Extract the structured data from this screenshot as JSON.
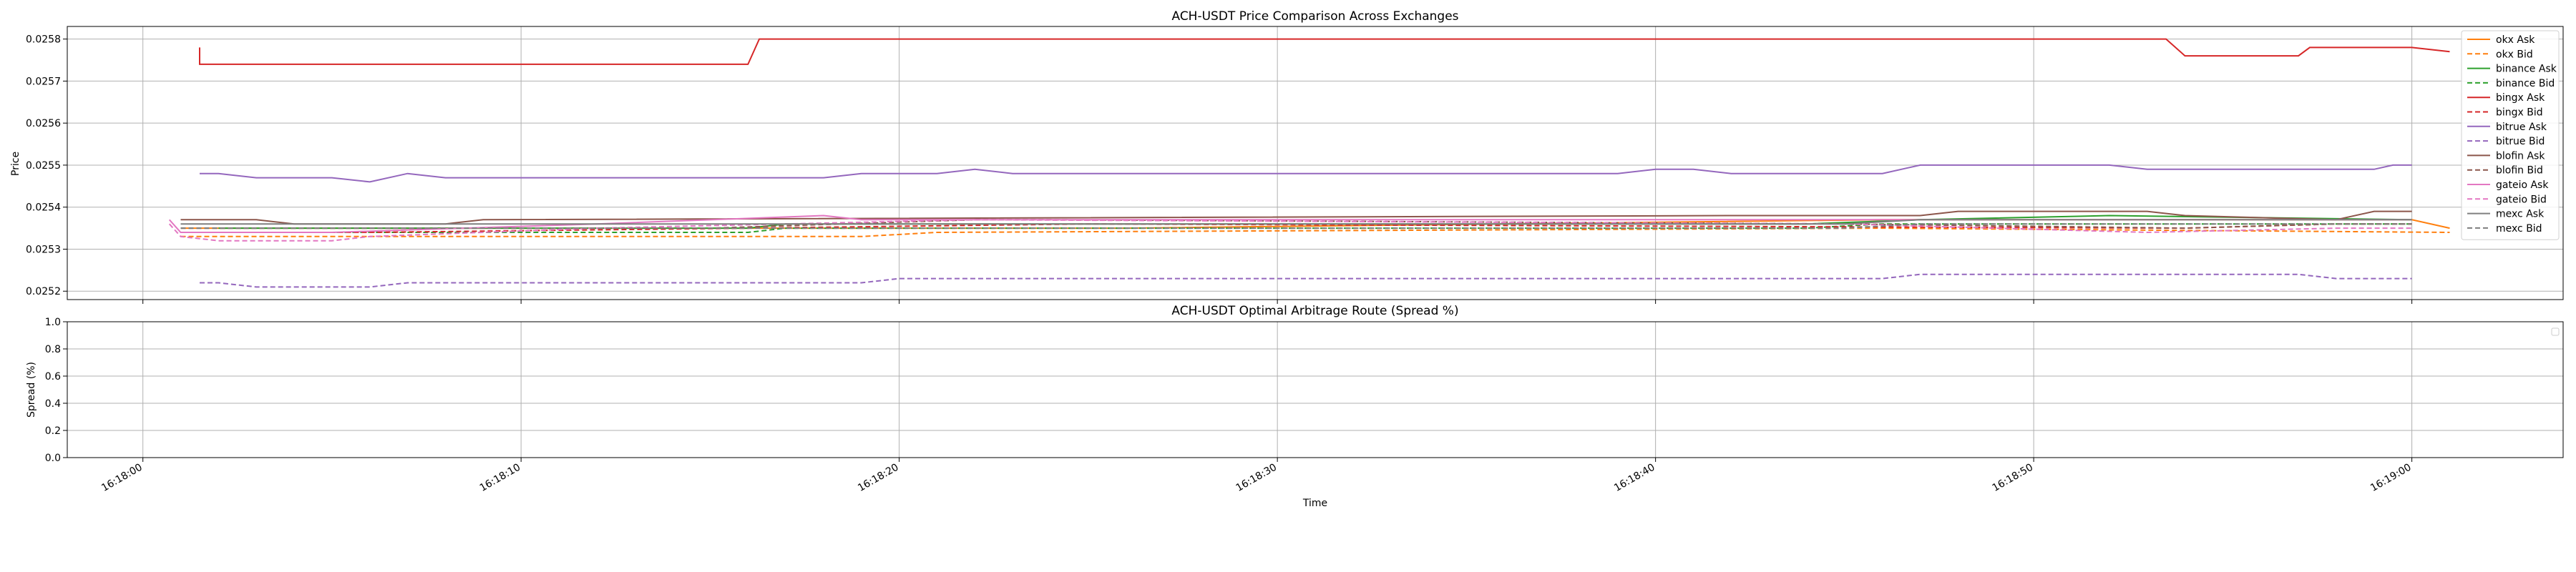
{
  "chart_data": [
    {
      "type": "line",
      "title": "ACH-USDT Price Comparison Across Exchanges",
      "xlabel": "",
      "ylabel": "Price",
      "xlim": [
        "16:17:58",
        "16:19:04"
      ],
      "ylim": [
        0.02518,
        0.02583
      ],
      "yticks": [
        "0.0252",
        "0.0253",
        "0.0254",
        "0.0255",
        "0.0256",
        "0.0257",
        "0.0258"
      ],
      "grid": true,
      "legend": "upper right",
      "series": [
        {
          "name": "okx Ask",
          "color": "#ff7f0e",
          "dash": false,
          "points": [
            [
              "16:18:01",
              0.02535
            ],
            [
              "16:18:06",
              0.02535
            ],
            [
              "16:18:26",
              0.02535
            ],
            [
              "16:18:46",
              0.02537
            ],
            [
              "16:19:00",
              0.02537
            ],
            [
              "16:19:01",
              0.02535
            ]
          ]
        },
        {
          "name": "okx Bid",
          "color": "#ff7f0e",
          "dash": true,
          "points": [
            [
              "16:18:01",
              0.02533
            ],
            [
              "16:18:06",
              0.02533
            ],
            [
              "16:18:19",
              0.02533
            ],
            [
              "16:18:21",
              0.02534
            ],
            [
              "16:18:46",
              0.02535
            ],
            [
              "16:19:01",
              0.02534
            ]
          ]
        },
        {
          "name": "binance Ask",
          "color": "#2ca02c",
          "dash": false,
          "points": [
            [
              "16:18:02",
              0.02535
            ],
            [
              "16:18:16",
              0.02535
            ],
            [
              "16:18:17",
              0.02536
            ],
            [
              "16:18:44",
              0.02536
            ],
            [
              "16:18:47",
              0.02537
            ],
            [
              "16:18:52",
              0.02538
            ],
            [
              "16:19:00",
              0.02537
            ]
          ]
        },
        {
          "name": "binance Bid",
          "color": "#2ca02c",
          "dash": true,
          "points": [
            [
              "16:18:02",
              0.02534
            ],
            [
              "16:18:16",
              0.02534
            ],
            [
              "16:18:17",
              0.02535
            ],
            [
              "16:18:44",
              0.02535
            ],
            [
              "16:18:46",
              0.02536
            ],
            [
              "16:19:00",
              0.02536
            ]
          ]
        },
        {
          "name": "bingx Ask",
          "color": "#d62728",
          "dash": false,
          "points": [
            [
              "16:18:01.5",
              0.02578
            ],
            [
              "16:18:01.5",
              0.02574
            ],
            [
              "16:18:16",
              0.02574
            ],
            [
              "16:18:16.3",
              0.0258
            ],
            [
              "16:18:53.5",
              0.0258
            ],
            [
              "16:18:54",
              0.02576
            ],
            [
              "16:18:57",
              0.02576
            ],
            [
              "16:18:57.3",
              0.02578
            ],
            [
              "16:19:00",
              0.02578
            ],
            [
              "16:19:01",
              0.02577
            ]
          ]
        },
        {
          "name": "bingx Bid",
          "color": "#d62728",
          "dash": true,
          "points": [
            [
              "16:18:01",
              0.02534
            ],
            [
              "16:18:06",
              0.02534
            ],
            [
              "16:18:16",
              0.02535
            ],
            [
              "16:18:25",
              0.02536
            ],
            [
              "16:18:54",
              0.02535
            ],
            [
              "16:18:58",
              0.02536
            ],
            [
              "16:19:00",
              0.02536
            ]
          ]
        },
        {
          "name": "bitrue Ask",
          "color": "#9467bd",
          "dash": false,
          "points": [
            [
              "16:18:01.5",
              0.02548
            ],
            [
              "16:18:02",
              0.02548
            ],
            [
              "16:18:03",
              0.02547
            ],
            [
              "16:18:05",
              0.02547
            ],
            [
              "16:18:06",
              0.02546
            ],
            [
              "16:18:07",
              0.02548
            ],
            [
              "16:18:08",
              0.02547
            ],
            [
              "16:18:18",
              0.02547
            ],
            [
              "16:18:19",
              0.02548
            ],
            [
              "16:18:21",
              0.02548
            ],
            [
              "16:18:22",
              0.02549
            ],
            [
              "16:18:23",
              0.02548
            ],
            [
              "16:18:39",
              0.02548
            ],
            [
              "16:18:40",
              0.02549
            ],
            [
              "16:18:41",
              0.02549
            ],
            [
              "16:18:42",
              0.02548
            ],
            [
              "16:18:46",
              0.02548
            ],
            [
              "16:18:47",
              0.0255
            ],
            [
              "16:18:52",
              0.0255
            ],
            [
              "16:18:53",
              0.02549
            ],
            [
              "16:18:59",
              0.02549
            ],
            [
              "16:18:59.5",
              0.0255
            ],
            [
              "16:19:00",
              0.0255
            ]
          ]
        },
        {
          "name": "bitrue Bid",
          "color": "#9467bd",
          "dash": true,
          "points": [
            [
              "16:18:01.5",
              0.02522
            ],
            [
              "16:18:02",
              0.02522
            ],
            [
              "16:18:03",
              0.02521
            ],
            [
              "16:18:06",
              0.02521
            ],
            [
              "16:18:07",
              0.02522
            ],
            [
              "16:18:19",
              0.02522
            ],
            [
              "16:18:20",
              0.02523
            ],
            [
              "16:18:46",
              0.02523
            ],
            [
              "16:18:47",
              0.02524
            ],
            [
              "16:18:57",
              0.02524
            ],
            [
              "16:18:58",
              0.02523
            ],
            [
              "16:19:00",
              0.02523
            ]
          ]
        },
        {
          "name": "blofin Ask",
          "color": "#8c564b",
          "dash": false,
          "points": [
            [
              "16:18:01",
              0.02537
            ],
            [
              "16:18:03",
              0.02537
            ],
            [
              "16:18:04",
              0.02536
            ],
            [
              "16:18:08",
              0.02536
            ],
            [
              "16:18:09",
              0.02537
            ],
            [
              "16:18:42",
              0.02538
            ],
            [
              "16:18:47",
              0.02538
            ],
            [
              "16:18:48",
              0.02539
            ],
            [
              "16:18:53",
              0.02539
            ],
            [
              "16:18:54",
              0.02538
            ],
            [
              "16:18:58",
              0.02537
            ],
            [
              "16:18:59",
              0.02539
            ],
            [
              "16:19:00",
              0.02539
            ]
          ]
        },
        {
          "name": "blofin Bid",
          "color": "#8c564b",
          "dash": true,
          "points": [
            [
              "16:18:01",
              0.02535
            ],
            [
              "16:18:15",
              0.02535
            ],
            [
              "16:18:22",
              0.02537
            ],
            [
              "16:18:24",
              0.02537
            ],
            [
              "16:18:45",
              0.02536
            ],
            [
              "16:18:54",
              0.02535
            ],
            [
              "16:18:58",
              0.02536
            ],
            [
              "16:19:00",
              0.02536
            ]
          ]
        },
        {
          "name": "gateio Ask",
          "color": "#e377c2",
          "dash": false,
          "points": [
            [
              "16:18:00.7",
              0.02537
            ],
            [
              "16:18:01",
              0.02534
            ],
            [
              "16:18:05",
              0.02534
            ],
            [
              "16:18:12",
              0.02536
            ],
            [
              "16:18:18",
              0.02538
            ],
            [
              "16:18:19",
              0.02537
            ],
            [
              "16:18:44",
              0.02537
            ],
            [
              "16:18:47",
              0.02537
            ],
            [
              "16:19:00",
              0.02537
            ]
          ]
        },
        {
          "name": "gateio Bid",
          "color": "#e377c2",
          "dash": true,
          "points": [
            [
              "16:18:00.7",
              0.02536
            ],
            [
              "16:18:01",
              0.02533
            ],
            [
              "16:18:02",
              0.02532
            ],
            [
              "16:18:05",
              0.02532
            ],
            [
              "16:18:06",
              0.02533
            ],
            [
              "16:18:12",
              0.02535
            ],
            [
              "16:18:22",
              0.02537
            ],
            [
              "16:18:45",
              0.02536
            ],
            [
              "16:18:53",
              0.02534
            ],
            [
              "16:18:58",
              0.02535
            ],
            [
              "16:19:00",
              0.02535
            ]
          ]
        },
        {
          "name": "mexc Ask",
          "color": "#7f7f7f",
          "dash": false,
          "points": [
            [
              "16:18:01",
              0.02536
            ],
            [
              "16:18:30",
              0.02536
            ],
            [
              "16:18:45",
              0.02536
            ],
            [
              "16:18:47",
              0.02537
            ],
            [
              "16:19:00",
              0.02537
            ]
          ]
        },
        {
          "name": "mexc Bid",
          "color": "#7f7f7f",
          "dash": true,
          "points": [
            [
              "16:18:01",
              0.02535
            ],
            [
              "16:18:30",
              0.02535
            ],
            [
              "16:18:45",
              0.02535
            ],
            [
              "16:18:47",
              0.02536
            ],
            [
              "16:19:00",
              0.02536
            ]
          ]
        }
      ]
    },
    {
      "type": "line",
      "title": "ACH-USDT Optimal Arbitrage Route (Spread %)",
      "xlabel": "Time",
      "ylabel": "Spread (%)",
      "xlim": [
        "16:17:58",
        "16:19:04"
      ],
      "ylim": [
        0.0,
        1.0
      ],
      "yticks": [
        "0.0",
        "0.2",
        "0.4",
        "0.6",
        "0.8",
        "1.0"
      ],
      "xticks": [
        "16:18:00",
        "16:18:10",
        "16:18:20",
        "16:18:30",
        "16:18:40",
        "16:18:50",
        "16:19:00"
      ],
      "grid": true,
      "legend": "upper right",
      "series": []
    }
  ]
}
